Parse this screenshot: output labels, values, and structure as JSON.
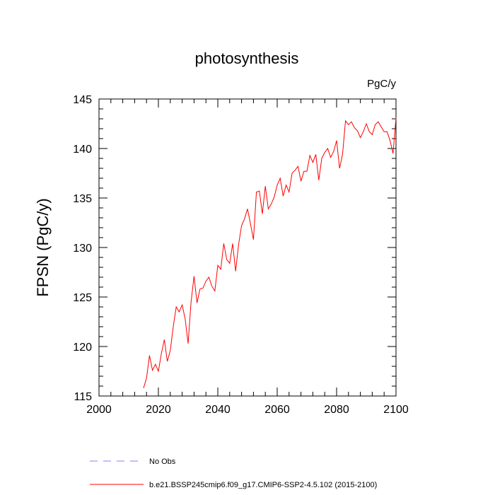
{
  "chart_data": {
    "type": "line",
    "title": "photosynthesis",
    "units_label": "PgC/y",
    "ylabel": "FPSN  (PgC/y)",
    "xlabel": "",
    "xlim": [
      2000,
      2100
    ],
    "ylim": [
      115,
      145
    ],
    "x_ticks": [
      2000,
      2020,
      2040,
      2060,
      2080,
      2100
    ],
    "y_ticks": [
      115,
      120,
      125,
      130,
      135,
      140,
      145
    ],
    "grid": false,
    "legend_position": "bottom-left, below plot",
    "legend": [
      {
        "label": "No Obs",
        "color": "#8080ff",
        "style": "dashed"
      },
      {
        "label": "b.e21.BSSP245cmip6.f09_g17.CMIP6-SSP2-4.5.102 (2015-2100)",
        "color": "#ff0000",
        "style": "solid"
      }
    ],
    "series": [
      {
        "name": "b.e21.BSSP245cmip6.f09_g17.CMIP6-SSP2-4.5.102 (2015-2100)",
        "color": "#ff0000",
        "x": [
          2015,
          2016,
          2017,
          2018,
          2019,
          2020,
          2021,
          2022,
          2023,
          2024,
          2025,
          2026,
          2027,
          2028,
          2029,
          2030,
          2031,
          2032,
          2033,
          2034,
          2035,
          2036,
          2037,
          2038,
          2039,
          2040,
          2041,
          2042,
          2043,
          2044,
          2045,
          2046,
          2047,
          2048,
          2049,
          2050,
          2051,
          2052,
          2053,
          2054,
          2055,
          2056,
          2057,
          2058,
          2059,
          2060,
          2061,
          2062,
          2063,
          2064,
          2065,
          2066,
          2067,
          2068,
          2069,
          2070,
          2071,
          2072,
          2073,
          2074,
          2075,
          2076,
          2077,
          2078,
          2079,
          2080,
          2081,
          2082,
          2083,
          2084,
          2085,
          2086,
          2087,
          2088,
          2089,
          2090,
          2091,
          2092,
          2093,
          2094,
          2095,
          2096,
          2097,
          2098,
          2099,
          2100
        ],
        "values": [
          115.8,
          116.8,
          119.1,
          117.6,
          118.2,
          117.5,
          119.3,
          120.7,
          118.5,
          119.6,
          122.0,
          124.0,
          123.5,
          124.2,
          122.8,
          120.3,
          124.5,
          127.1,
          124.4,
          125.8,
          125.9,
          126.6,
          127.0,
          126.1,
          125.6,
          128.2,
          127.8,
          130.4,
          128.8,
          128.4,
          130.4,
          127.6,
          130.3,
          132.2,
          132.9,
          133.9,
          132.4,
          130.8,
          135.6,
          135.7,
          133.4,
          136.2,
          133.9,
          134.4,
          135.1,
          136.3,
          137.0,
          135.2,
          136.3,
          135.6,
          137.5,
          137.8,
          138.2,
          136.7,
          137.7,
          137.7,
          139.3,
          138.6,
          139.4,
          136.8,
          139.0,
          139.6,
          140.0,
          139.1,
          139.7,
          140.8,
          138.0,
          139.4,
          142.8,
          142.4,
          142.7,
          142.1,
          141.8,
          141.1,
          141.7,
          142.5,
          141.7,
          141.4,
          142.4,
          142.7,
          142.2,
          141.7,
          141.7,
          140.8,
          139.5,
          143.1
        ]
      }
    ]
  }
}
